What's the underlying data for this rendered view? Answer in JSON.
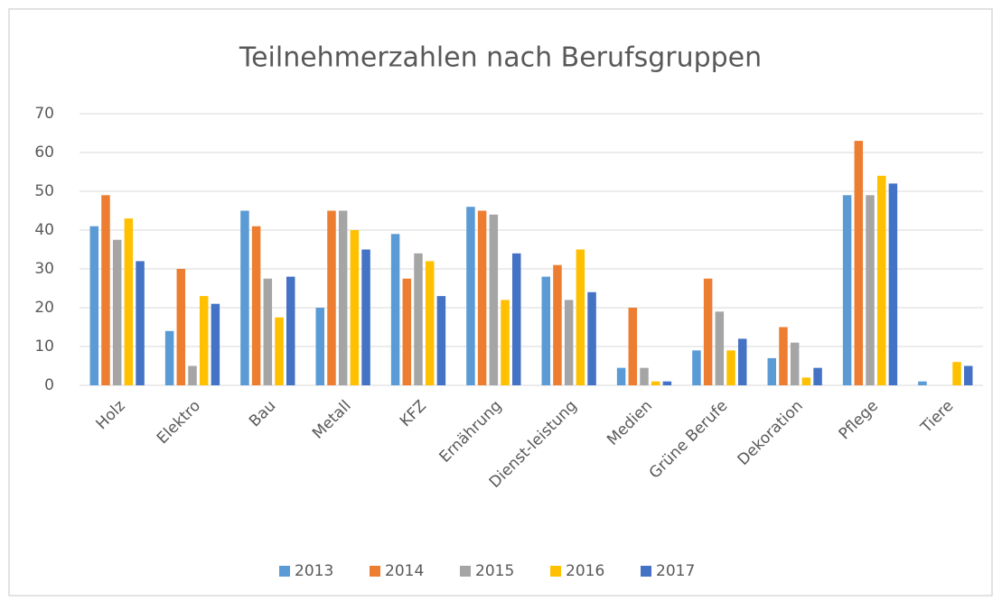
{
  "chart_data": {
    "type": "bar",
    "title": "Teilnehmerzahlen nach Berufsgruppen",
    "categories": [
      "Holz",
      "Elektro",
      "Bau",
      "Metall",
      "KFZ",
      "Ernährung",
      "Dienst-leistung",
      "Medien",
      "Grüne Berufe",
      "Dekoration",
      "Pflege",
      "Tiere"
    ],
    "series": [
      {
        "name": "2013",
        "color": "#5b9bd5",
        "values": [
          41,
          14,
          45,
          20,
          39,
          46,
          28,
          4.5,
          9,
          7,
          49,
          1
        ]
      },
      {
        "name": "2014",
        "color": "#ed7d31",
        "values": [
          49,
          30,
          41,
          45,
          27.5,
          45,
          31,
          20,
          27.5,
          15,
          63,
          0
        ]
      },
      {
        "name": "2015",
        "color": "#a5a5a5",
        "values": [
          37.5,
          5,
          27.5,
          45,
          34,
          44,
          22,
          4.5,
          19,
          11,
          49,
          0
        ]
      },
      {
        "name": "2016",
        "color": "#ffc000",
        "values": [
          43,
          23,
          17.5,
          40,
          32,
          22,
          35,
          1,
          9,
          2,
          54,
          6
        ]
      },
      {
        "name": "2017",
        "color": "#4472c4",
        "values": [
          32,
          21,
          28,
          35,
          23,
          34,
          24,
          1,
          12,
          4.5,
          52,
          5
        ]
      }
    ],
    "ylim": [
      0,
      70
    ],
    "yticks": [
      0,
      10,
      20,
      30,
      40,
      50,
      60,
      70
    ],
    "grid": true,
    "legend": "bottom"
  }
}
